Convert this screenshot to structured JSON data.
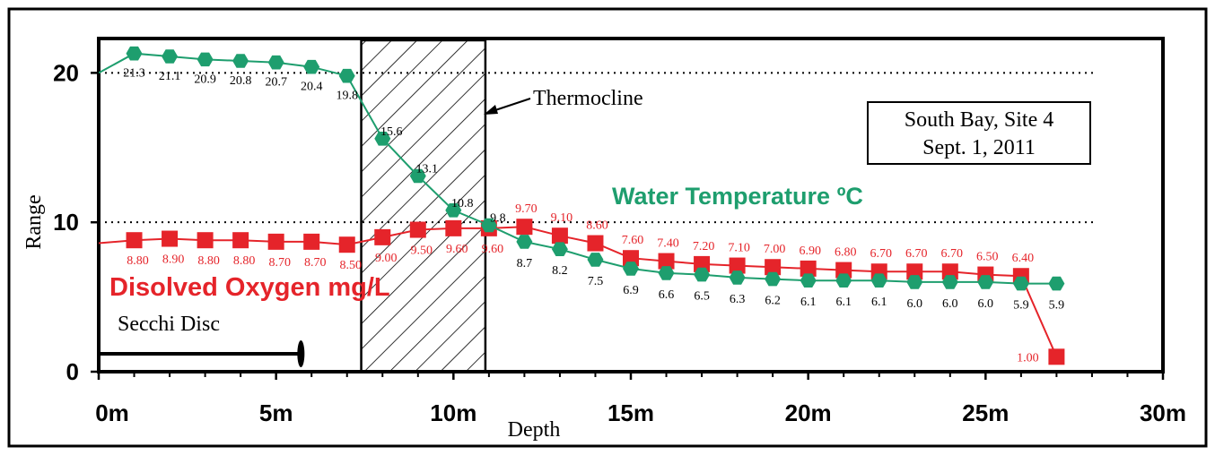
{
  "chart_data": {
    "type": "line",
    "title": "",
    "xlabel": "Depth",
    "ylabel": "Range",
    "xlim": [
      0,
      30
    ],
    "ylim": [
      0,
      22.3
    ],
    "x_ticks": [
      0,
      5,
      10,
      15,
      20,
      25,
      30
    ],
    "x_tick_labels": [
      "0m",
      "5m",
      "10m",
      "15m",
      "20m",
      "25m",
      "30m"
    ],
    "y_ticks": [
      0,
      10,
      20
    ],
    "y_tick_labels": [
      "0",
      "10",
      "20"
    ],
    "grid": "dotted reference lines at 10 and 20",
    "info_box": [
      "South Bay, Site 4",
      "Sept. 1, 2011"
    ],
    "thermocline": {
      "label": "Thermocline",
      "x_start": 7.4,
      "x_end": 10.9
    },
    "secchi_disc": {
      "label": "Secchi Disc",
      "depth": 5.7,
      "y": 1.2
    },
    "series": [
      {
        "name": "Water Temperature ºC",
        "color": "#1e9e6e",
        "marker": "hexagon",
        "x": [
          0,
          1,
          2,
          3,
          4,
          5,
          6,
          7,
          8,
          9,
          10,
          11,
          12,
          13,
          14,
          15,
          16,
          17,
          18,
          19,
          20,
          21,
          22,
          23,
          24,
          25,
          26,
          27
        ],
        "values": [
          20.0,
          21.3,
          21.1,
          20.9,
          20.8,
          20.7,
          20.4,
          19.8,
          15.6,
          13.1,
          10.8,
          9.8,
          8.7,
          8.2,
          7.5,
          6.9,
          6.6,
          6.5,
          6.3,
          6.2,
          6.1,
          6.1,
          6.1,
          6.0,
          6.0,
          6.0,
          5.9,
          5.9
        ],
        "labels": [
          "",
          "21.3",
          "21.1",
          "20.9",
          "20.8",
          "20.7",
          "20.4",
          "19.8",
          "15.6",
          "13.1",
          "10.8",
          "9.8",
          "8.7",
          "8.2",
          "7.5",
          "6.9",
          "6.6",
          "6.5",
          "6.3",
          "6.2",
          "6.1",
          "6.1",
          "6.1",
          "6.0",
          "6.0",
          "6.0",
          "5.9",
          "5.9"
        ]
      },
      {
        "name": "Disolved Oxygen mg/L",
        "color": "#e5242a",
        "marker": "square",
        "x": [
          0,
          1,
          2,
          3,
          4,
          5,
          6,
          7,
          8,
          9,
          10,
          11,
          12,
          13,
          14,
          15,
          16,
          17,
          18,
          19,
          20,
          21,
          22,
          23,
          24,
          25,
          26,
          27
        ],
        "values": [
          8.6,
          8.8,
          8.9,
          8.8,
          8.8,
          8.7,
          8.7,
          8.5,
          9.0,
          9.5,
          9.6,
          9.6,
          9.7,
          9.1,
          8.6,
          7.6,
          7.4,
          7.2,
          7.1,
          7.0,
          6.9,
          6.8,
          6.7,
          6.7,
          6.7,
          6.5,
          6.4,
          1.0
        ],
        "labels": [
          "",
          "8.80",
          "8.90",
          "8.80",
          "8.80",
          "8.70",
          "8.70",
          "8.50",
          "9.00",
          "9.50",
          "9.60",
          "9.60",
          "9.70",
          "9.10",
          "8.60",
          "7.60",
          "7.40",
          "7.20",
          "7.10",
          "7.00",
          "6.90",
          "6.80",
          "6.70",
          "6.70",
          "6.70",
          "6.50",
          "6.40",
          "1.00"
        ]
      }
    ]
  }
}
